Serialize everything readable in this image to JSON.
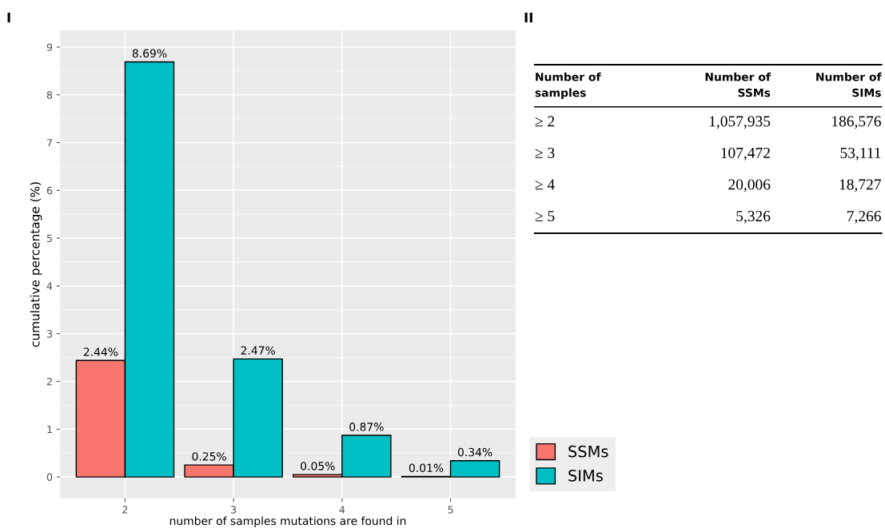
{
  "chart_data": [
    {
      "type": "bar",
      "title": "I",
      "xlabel": "number of samples mutations are found in",
      "ylabel": "cumulative percentage (%)",
      "categories": [
        "2",
        "3",
        "4",
        "5"
      ],
      "series": [
        {
          "name": "SSMs",
          "color": "#f8766d",
          "values": [
            2.44,
            0.25,
            0.05,
            0.01
          ],
          "value_labels": [
            "2.44%",
            "0.25%",
            "0.05%",
            "0.01%"
          ]
        },
        {
          "name": "SIMs",
          "color": "#00bfc4",
          "values": [
            8.69,
            2.47,
            0.87,
            0.34
          ],
          "value_labels": [
            "8.69%",
            "2.47%",
            "0.87%",
            "0.34%"
          ]
        }
      ],
      "ylim": [
        -0.45,
        9.35
      ],
      "yticks": [
        0,
        1,
        2,
        3,
        4,
        5,
        6,
        7,
        8,
        9
      ],
      "grid": true,
      "legend": "bottom right"
    },
    {
      "type": "other",
      "title": "II",
      "annotations": [
        "Number of\nsamples",
        "Number of\nSSMs",
        "Number of\nSIMs",
        "≥ 2",
        "1,057,935",
        "186,576",
        "≥ 3",
        "107,472",
        "53,111",
        "≥ 4",
        "20,006",
        "18,727",
        "≥ 5",
        "5,326",
        "7,266"
      ]
    }
  ]
}
